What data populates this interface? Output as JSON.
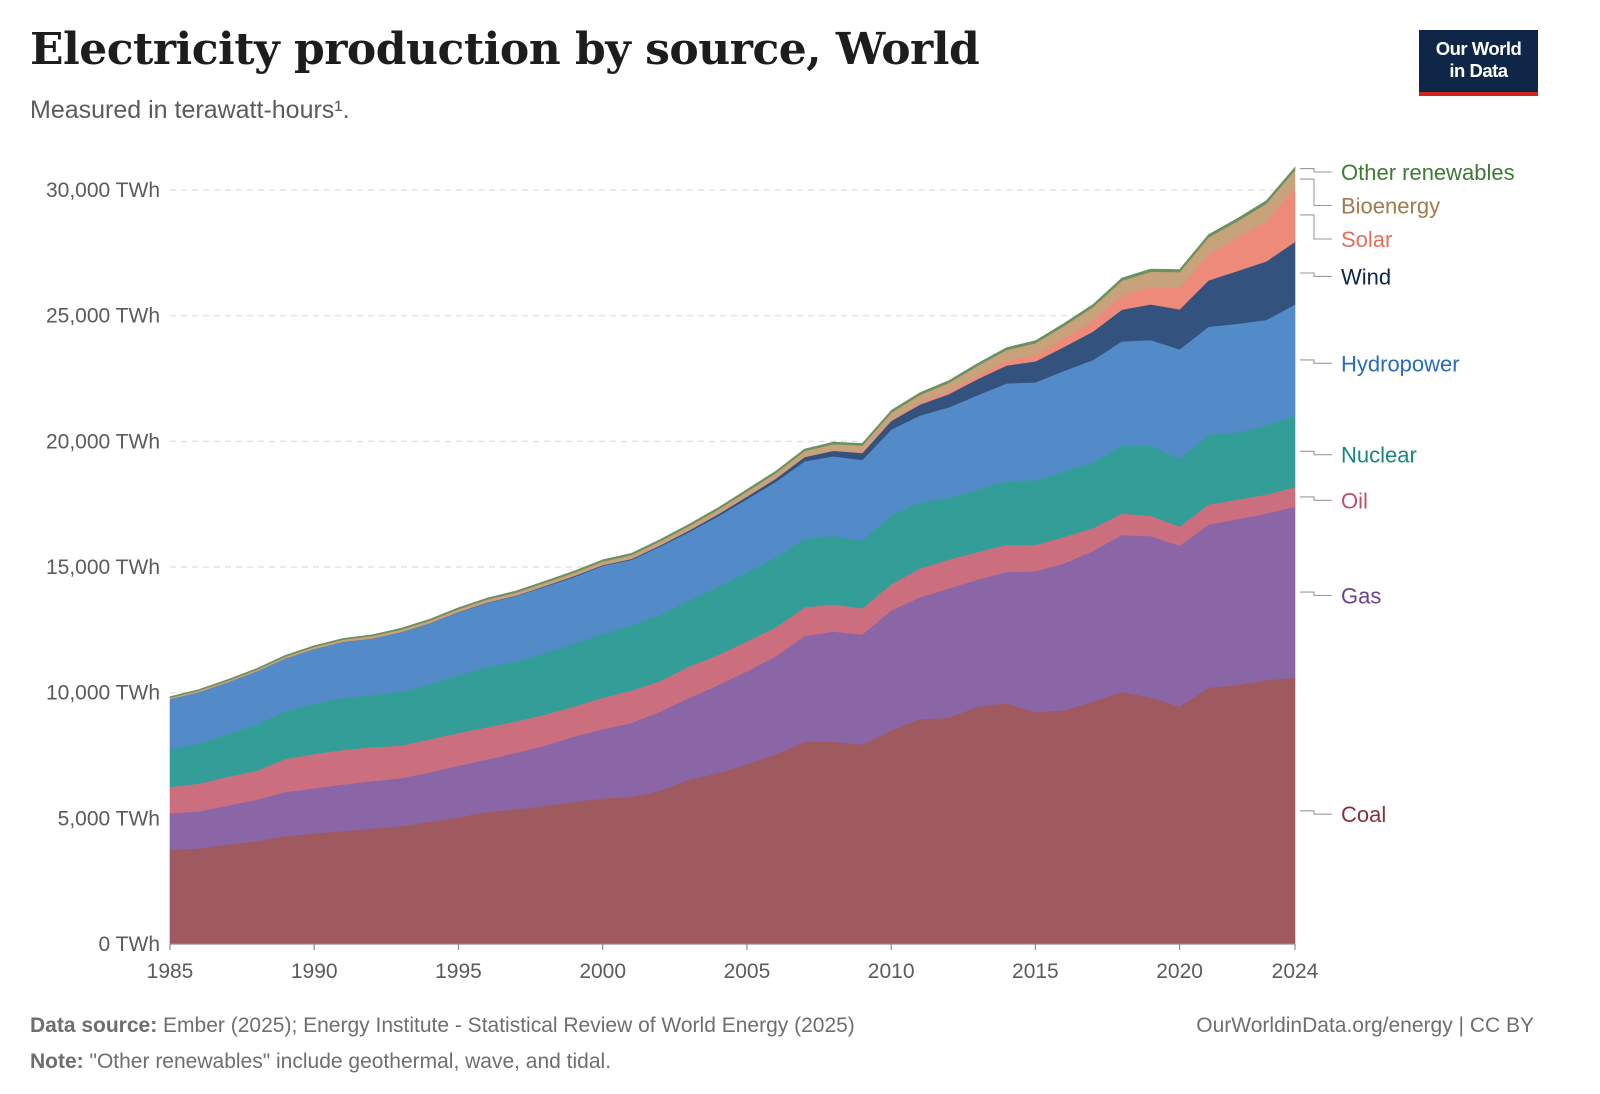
{
  "header": {
    "title": "Electricity production by source, World",
    "subtitle": "Measured in terawatt-hours¹.",
    "logo_line1": "Our World",
    "logo_line2": "in Data"
  },
  "footer": {
    "source_label": "Data source:",
    "source_text": " Ember (2025); Energy Institute - Statistical Review of World Energy (2025)",
    "credit": "OurWorldinData.org/energy | CC BY",
    "note_label": "Note:",
    "note_text": " \"Other renewables\" include geothermal, wave, and tidal."
  },
  "chart_data": {
    "type": "area",
    "stacked": true,
    "title": "Electricity production by source, World",
    "subtitle": "Measured in terawatt-hours¹.",
    "y_unit": "TWh",
    "ylim": [
      0,
      30000
    ],
    "yticks": [
      0,
      5000,
      10000,
      15000,
      20000,
      25000,
      30000
    ],
    "ytick_labels": [
      "0 TWh",
      "5,000 TWh",
      "10,000 TWh",
      "15,000 TWh",
      "20,000 TWh",
      "25,000 TWh",
      "30,000 TWh"
    ],
    "xlim": [
      1985,
      2024
    ],
    "xticks": [
      1985,
      1990,
      1995,
      2000,
      2005,
      2010,
      2015,
      2020,
      2024
    ],
    "grid": "horizontal dashed",
    "legend_placement": "right (labels at series ends)",
    "x": [
      1985,
      1986,
      1987,
      1988,
      1989,
      1990,
      1991,
      1992,
      1993,
      1994,
      1995,
      1996,
      1997,
      1998,
      1999,
      2000,
      2001,
      2002,
      2003,
      2004,
      2005,
      2006,
      2007,
      2008,
      2009,
      2010,
      2011,
      2012,
      2013,
      2014,
      2015,
      2016,
      2017,
      2018,
      2019,
      2020,
      2021,
      2022,
      2023,
      2024
    ],
    "series": [
      {
        "name": "Coal",
        "color": "#9e5a5f",
        "label_color": "#883039",
        "values": [
          3750,
          3800,
          3960,
          4100,
          4300,
          4400,
          4500,
          4600,
          4700,
          4870,
          5050,
          5250,
          5360,
          5500,
          5650,
          5800,
          5850,
          6100,
          6550,
          6800,
          7150,
          7550,
          8060,
          8050,
          7940,
          8500,
          8950,
          9000,
          9450,
          9580,
          9230,
          9300,
          9650,
          10030,
          9810,
          9450,
          10200,
          10300,
          10500,
          10600
        ]
      },
      {
        "name": "Gas",
        "color": "#8a66a6",
        "label_color": "#6d3e91",
        "values": [
          1450,
          1480,
          1550,
          1640,
          1750,
          1800,
          1850,
          1880,
          1900,
          1960,
          2050,
          2100,
          2250,
          2400,
          2600,
          2750,
          2950,
          3150,
          3250,
          3500,
          3700,
          3900,
          4200,
          4380,
          4380,
          4780,
          4850,
          5150,
          5050,
          5230,
          5600,
          5850,
          6000,
          6250,
          6420,
          6400,
          6490,
          6600,
          6630,
          6800
        ]
      },
      {
        "name": "Oil",
        "color": "#cb6f7e",
        "label_color": "#c15065",
        "values": [
          1050,
          1100,
          1150,
          1150,
          1320,
          1360,
          1370,
          1350,
          1300,
          1320,
          1300,
          1280,
          1250,
          1230,
          1200,
          1250,
          1290,
          1220,
          1250,
          1200,
          1190,
          1150,
          1140,
          1080,
          1040,
          1030,
          1150,
          1150,
          1100,
          1080,
          1050,
          1050,
          900,
          850,
          810,
          760,
          800,
          780,
          750,
          780
        ]
      },
      {
        "name": "Nuclear",
        "color": "#339e98",
        "label_color": "#18857f",
        "values": [
          1500,
          1600,
          1700,
          1850,
          1900,
          2000,
          2080,
          2090,
          2150,
          2200,
          2300,
          2400,
          2390,
          2450,
          2500,
          2550,
          2600,
          2650,
          2630,
          2720,
          2760,
          2790,
          2730,
          2730,
          2700,
          2760,
          2630,
          2460,
          2490,
          2540,
          2570,
          2610,
          2640,
          2700,
          2790,
          2700,
          2800,
          2680,
          2760,
          2850
        ]
      },
      {
        "name": "Hydropower",
        "color": "#538bc9",
        "label_color": "#286bbb",
        "values": [
          2000,
          2050,
          2060,
          2110,
          2100,
          2180,
          2220,
          2230,
          2350,
          2400,
          2500,
          2550,
          2600,
          2640,
          2650,
          2700,
          2600,
          2700,
          2720,
          2800,
          2900,
          3000,
          3080,
          3170,
          3200,
          3400,
          3450,
          3600,
          3750,
          3880,
          3900,
          4000,
          4050,
          4150,
          4200,
          4350,
          4270,
          4320,
          4190,
          4420
        ]
      },
      {
        "name": "Wind",
        "color": "#34527e",
        "label_color": "#0f2649",
        "values": [
          0,
          0,
          0,
          0,
          0,
          4,
          6,
          8,
          10,
          12,
          15,
          17,
          20,
          30,
          40,
          31,
          38,
          52,
          64,
          85,
          104,
          133,
          170,
          219,
          276,
          342,
          437,
          520,
          640,
          707,
          833,
          957,
          1135,
          1262,
          1423,
          1592,
          1848,
          2098,
          2330,
          2494
        ]
      },
      {
        "name": "Solar",
        "color": "#ed8a7a",
        "label_color": "#e56e5a",
        "values": [
          0,
          0,
          0,
          0,
          0,
          0,
          0,
          0,
          0,
          0,
          0,
          0,
          0,
          0,
          0,
          1,
          1,
          1,
          1,
          2,
          4,
          6,
          8,
          12,
          20,
          32,
          63,
          98,
          138,
          190,
          256,
          330,
          444,
          575,
          700,
          850,
          1050,
          1300,
          1600,
          2130
        ]
      },
      {
        "name": "Bioenergy",
        "color": "#c7a27b",
        "label_color": "#a2794d",
        "values": [
          50,
          55,
          60,
          65,
          70,
          80,
          85,
          95,
          100,
          105,
          110,
          115,
          120,
          130,
          135,
          140,
          150,
          160,
          170,
          180,
          200,
          210,
          230,
          250,
          280,
          300,
          320,
          350,
          390,
          430,
          470,
          500,
          530,
          580,
          600,
          630,
          660,
          680,
          700,
          720
        ]
      },
      {
        "name": "Other renewables",
        "color": "#6a915e",
        "label_color": "#3f7a35",
        "values": [
          40,
          40,
          42,
          44,
          45,
          46,
          47,
          48,
          50,
          52,
          55,
          56,
          58,
          60,
          62,
          64,
          65,
          66,
          70,
          72,
          74,
          76,
          78,
          80,
          82,
          86,
          88,
          90,
          92,
          94,
          96,
          98,
          100,
          102,
          104,
          106,
          108,
          110,
          112,
          115
        ]
      }
    ]
  }
}
